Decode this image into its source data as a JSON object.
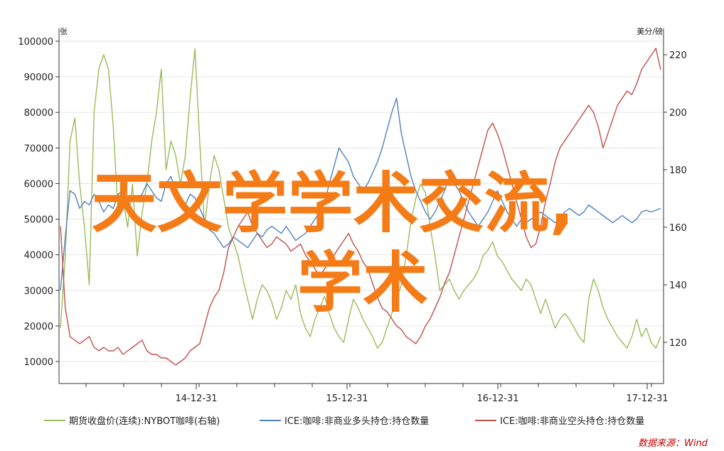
{
  "chart_data": {
    "type": "line",
    "left_axis": {
      "unit": "张",
      "ticks": [
        10000,
        20000,
        30000,
        40000,
        50000,
        60000,
        70000,
        80000,
        90000,
        100000
      ]
    },
    "right_axis": {
      "unit": "美分/磅",
      "ticks": [
        120,
        140,
        160,
        180,
        200,
        220
      ]
    },
    "x_ticks": [
      "14-12-31",
      "15-12-31",
      "16-12-31",
      "17-12-31"
    ],
    "series": [
      {
        "name": "期货收盘价(连续):NYBOT咖啡(右轴)",
        "axis": "right",
        "color": "#9bbb59",
        "values": [
          125,
          150,
          190,
          198,
          175,
          160,
          140,
          200,
          215,
          220,
          215,
          195,
          165,
          170,
          160,
          175,
          150,
          165,
          175,
          190,
          200,
          215,
          180,
          190,
          185,
          175,
          185,
          205,
          222,
          190,
          160,
          175,
          185,
          180,
          170,
          160,
          155,
          150,
          142,
          135,
          128,
          135,
          140,
          138,
          134,
          128,
          132,
          138,
          135,
          140,
          130,
          125,
          122,
          128,
          132,
          136,
          130,
          125,
          122,
          120,
          128,
          135,
          132,
          128,
          125,
          122,
          118,
          120,
          125,
          130,
          135,
          140,
          150,
          162,
          170,
          175,
          172,
          160,
          150,
          138,
          140,
          142,
          138,
          135,
          138,
          140,
          142,
          145,
          150,
          152,
          155,
          150,
          148,
          145,
          142,
          140,
          138,
          142,
          140,
          135,
          130,
          135,
          130,
          125,
          128,
          130,
          128,
          125,
          122,
          120,
          135,
          142,
          138,
          132,
          128,
          125,
          122,
          120,
          118,
          122,
          128,
          122,
          125,
          120,
          118,
          122
        ]
      },
      {
        "name": "ICE:咖啡:非商业多头持仓:持仓数量",
        "axis": "left",
        "color": "#4f81bd",
        "values": [
          30000,
          45000,
          58000,
          57000,
          53000,
          55000,
          54000,
          57000,
          55000,
          52000,
          54000,
          53000,
          57000,
          58000,
          56000,
          55000,
          56000,
          57000,
          60000,
          58000,
          56000,
          55000,
          60000,
          62000,
          58000,
          55000,
          54000,
          57000,
          56000,
          53000,
          50000,
          47000,
          46000,
          44000,
          42000,
          43000,
          45000,
          44000,
          43000,
          42000,
          44000,
          46000,
          45000,
          47000,
          48000,
          47000,
          46000,
          48000,
          46000,
          44000,
          45000,
          46000,
          48000,
          50000,
          52000,
          55000,
          60000,
          65000,
          70000,
          68000,
          66000,
          62000,
          60000,
          58000,
          60000,
          63000,
          66000,
          70000,
          75000,
          80000,
          84000,
          74000,
          68000,
          62000,
          58000,
          55000,
          52000,
          50000,
          52000,
          55000,
          58000,
          62000,
          60000,
          58000,
          55000,
          52000,
          50000,
          48000,
          50000,
          52000,
          55000,
          58000,
          55000,
          52000,
          50000,
          48000,
          50000,
          49000,
          50000,
          51000,
          52000,
          51000,
          50000,
          49000,
          50000,
          52000,
          53000,
          52000,
          51000,
          52000,
          54000,
          53000,
          52000,
          51000,
          50000,
          49000,
          50000,
          51000,
          50000,
          49000,
          50000,
          52000,
          52500,
          52000,
          52500,
          53000
        ]
      },
      {
        "name": "ICE:咖啡:非商业空头持仓:持仓数量",
        "axis": "left",
        "color": "#c0504d",
        "values": [
          48000,
          25000,
          17000,
          16000,
          15000,
          16000,
          17000,
          14000,
          13000,
          14000,
          13000,
          13000,
          14000,
          12000,
          13000,
          14000,
          15000,
          16000,
          13000,
          12000,
          12000,
          11000,
          11000,
          10000,
          9000,
          10000,
          11000,
          13000,
          14000,
          15000,
          20000,
          25000,
          28000,
          30000,
          35000,
          42000,
          45000,
          48000,
          50000,
          52000,
          48000,
          46000,
          44000,
          42000,
          43000,
          45000,
          44000,
          43000,
          41000,
          42000,
          43000,
          40000,
          38000,
          36000,
          34000,
          36000,
          38000,
          40000,
          42000,
          44000,
          46000,
          43000,
          41000,
          38000,
          36000,
          32000,
          28000,
          25000,
          24000,
          22000,
          20000,
          19000,
          17000,
          16000,
          15000,
          17000,
          20000,
          22000,
          25000,
          28000,
          32000,
          35000,
          40000,
          45000,
          50000,
          55000,
          60000,
          65000,
          70000,
          75000,
          77000,
          74000,
          70000,
          65000,
          60000,
          55000,
          50000,
          45000,
          42000,
          43000,
          48000,
          55000,
          60000,
          66000,
          70000,
          72000,
          74000,
          76000,
          78000,
          80000,
          82000,
          80000,
          76000,
          70000,
          74000,
          78000,
          82000,
          84000,
          86000,
          85000,
          88000,
          92000,
          94000,
          96000,
          98000,
          92000
        ]
      }
    ],
    "source": "数据来源：Wind",
    "overlay_text": [
      "天文学学术交流,",
      "学术"
    ]
  }
}
